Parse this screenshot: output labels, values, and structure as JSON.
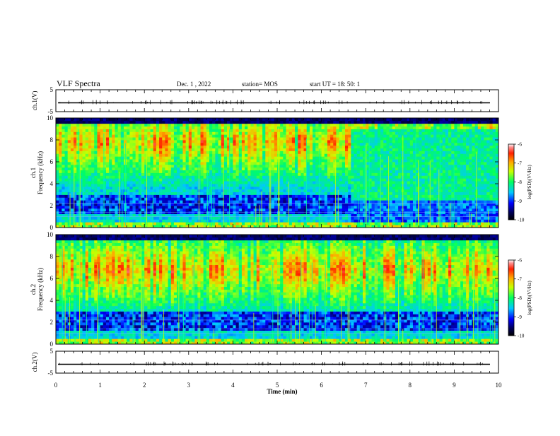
{
  "header": {
    "title": "VLF Spectra",
    "date": "Dec. 1  , 2022",
    "station": "station= MOS",
    "start": "start  UT  =   18: 50: 1"
  },
  "chart_data": {
    "type": "heatmap",
    "x_axis": {
      "label": "Time  (min)",
      "range": [
        0,
        10
      ],
      "ticks": [
        "0",
        "1",
        "2",
        "3",
        "4",
        "5",
        "6",
        "7",
        "8",
        "9",
        "10"
      ]
    },
    "panels": [
      {
        "id": "ch1-waveform",
        "type": "line",
        "ylabel": "ch.1(V)",
        "ylim": [
          -5,
          5
        ],
        "yticks": [
          "5",
          "-5"
        ],
        "baseline_value": 0
      },
      {
        "id": "ch1-spectrogram",
        "type": "heatmap",
        "ylabel_line1": "ch.1",
        "ylabel_line2": "Frequency (kHz)",
        "ylim": [
          0,
          10
        ],
        "yticks": [
          "0",
          "2",
          "4",
          "6",
          "8",
          "10"
        ],
        "colorbar": {
          "label": "log(PSD)(V²/Hz)",
          "range": [
            -10,
            -6
          ],
          "ticks": [
            "-6",
            "-7",
            "-8",
            "-9",
            "-10"
          ]
        }
      },
      {
        "id": "ch2-spectrogram",
        "type": "heatmap",
        "ylabel_line1": "ch.2",
        "ylabel_line2": "Frequency (kHz)",
        "ylim": [
          0,
          10
        ],
        "yticks": [
          "0",
          "2",
          "4",
          "6",
          "8",
          "10"
        ],
        "colorbar": {
          "label": "log(PSD)(V²/Hz)",
          "range": [
            -10,
            -6
          ],
          "ticks": [
            "-6",
            "-7",
            "-8",
            "-9",
            "-10"
          ]
        }
      },
      {
        "id": "ch2-waveform",
        "type": "line",
        "ylabel": "ch.2(V)",
        "ylim": [
          -5,
          5
        ],
        "yticks": [
          "5",
          "-5"
        ],
        "baseline_value": 0
      }
    ]
  }
}
